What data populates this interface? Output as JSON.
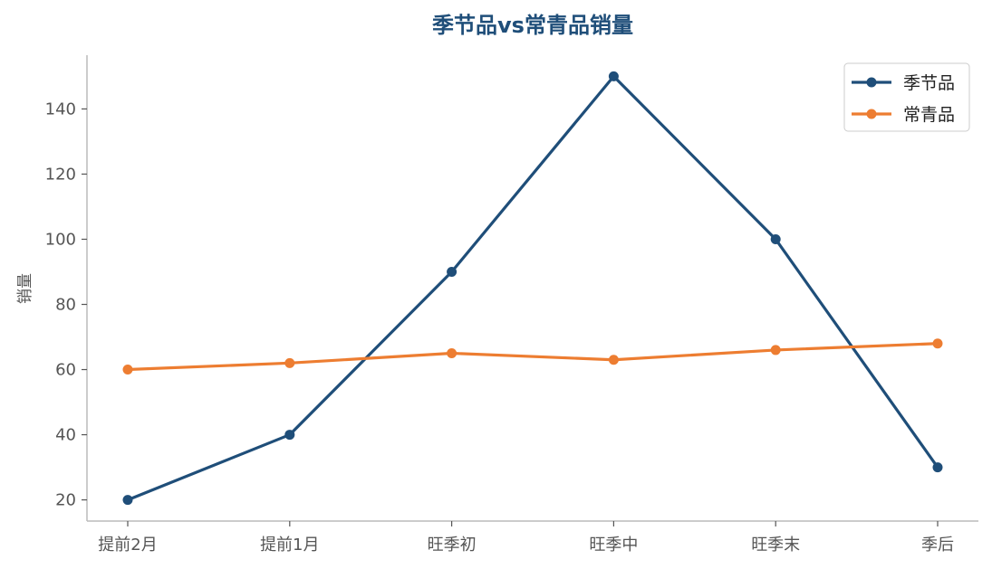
{
  "chart_data": {
    "type": "line",
    "title": "季节品vs常青品销量",
    "xlabel": "",
    "ylabel": "销量",
    "categories": [
      "提前2月",
      "提前1月",
      "旺季初",
      "旺季中",
      "旺季末",
      "季后"
    ],
    "series": [
      {
        "name": "季节品",
        "values": [
          20,
          40,
          90,
          150,
          100,
          30
        ],
        "color": "#1f4e79"
      },
      {
        "name": "常青品",
        "values": [
          60,
          62,
          65,
          63,
          66,
          68
        ],
        "color": "#ed7d31"
      }
    ],
    "yticks": [
      20,
      40,
      60,
      80,
      100,
      120,
      140
    ],
    "ylim": [
      13.5,
      156.5
    ],
    "grid": false,
    "legend": "top-right",
    "title_color": "#1f4e79",
    "axis_color": "#bbbbbb"
  }
}
